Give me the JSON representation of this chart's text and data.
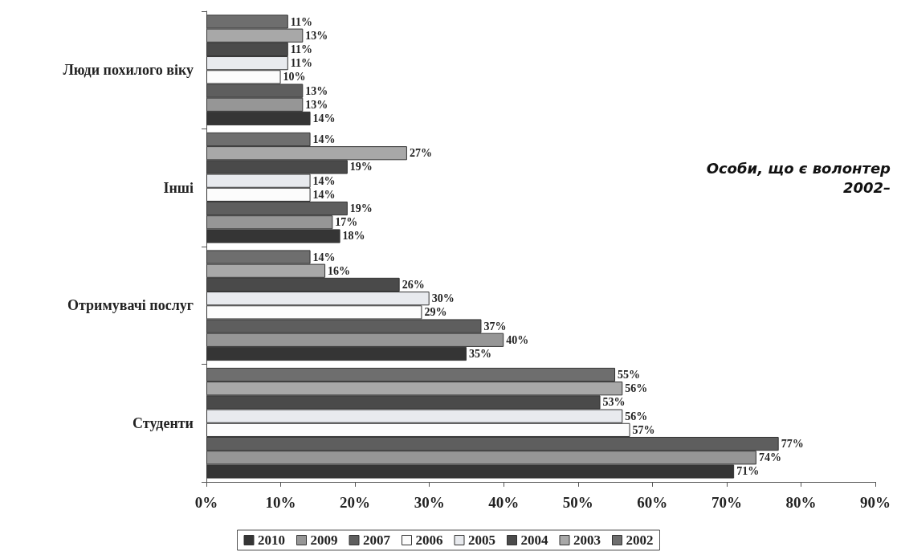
{
  "chart_data": {
    "type": "bar",
    "orientation": "horizontal",
    "categories": [
      "Люди похилого віку",
      "Інші",
      "Отримувачі послуг",
      "Студенти"
    ],
    "series": [
      {
        "name": "2002",
        "color": "#6e6e6e",
        "values": [
          11,
          14,
          14,
          55
        ],
        "value_labels": [
          "11%",
          "14%",
          "14%",
          "55%"
        ]
      },
      {
        "name": "2003",
        "color": "#a8a8a8",
        "values": [
          13,
          27,
          16,
          56
        ],
        "value_labels": [
          "13%",
          "27%",
          "16%",
          "56%"
        ]
      },
      {
        "name": "2004",
        "color": "#4a4a4a",
        "values": [
          11,
          19,
          26,
          53
        ],
        "value_labels": [
          "11%",
          "19%",
          "26%",
          "53%"
        ]
      },
      {
        "name": "2005",
        "color": "#e8eaee",
        "values": [
          11,
          14,
          30,
          56
        ],
        "value_labels": [
          "11%",
          "14%",
          "30%",
          "56%"
        ]
      },
      {
        "name": "2006",
        "color": "#fcfcfc",
        "values": [
          10,
          14,
          29,
          57
        ],
        "value_labels": [
          "10%",
          "14%",
          "29%",
          "57%"
        ]
      },
      {
        "name": "2007",
        "color": "#5e5e5e",
        "values": [
          13,
          19,
          37,
          77
        ],
        "value_labels": [
          "13%",
          "19%",
          "37%",
          "77%"
        ]
      },
      {
        "name": "2009",
        "color": "#969696",
        "values": [
          13,
          17,
          40,
          74
        ],
        "value_labels": [
          "13%",
          "17%",
          "40%",
          "74%"
        ]
      },
      {
        "name": "2010",
        "color": "#353535",
        "values": [
          14,
          18,
          35,
          71
        ],
        "value_labels": [
          "14%",
          "18%",
          "35%",
          "71%"
        ]
      }
    ],
    "xlim": [
      0,
      90
    ],
    "xticks": [
      {
        "value": 0,
        "label": "0%"
      },
      {
        "value": 10,
        "label": "10%"
      },
      {
        "value": 20,
        "label": "20%"
      },
      {
        "value": 30,
        "label": "30%"
      },
      {
        "value": 40,
        "label": "40%"
      },
      {
        "value": 50,
        "label": "50%"
      },
      {
        "value": 60,
        "label": "60%"
      },
      {
        "value": 70,
        "label": "70%"
      },
      {
        "value": 80,
        "label": "80%"
      },
      {
        "value": 90,
        "label": "90%"
      }
    ],
    "grid": false,
    "legend": "bottom",
    "annotations": [
      "Особи, що є волонтер",
      "2002–"
    ]
  }
}
